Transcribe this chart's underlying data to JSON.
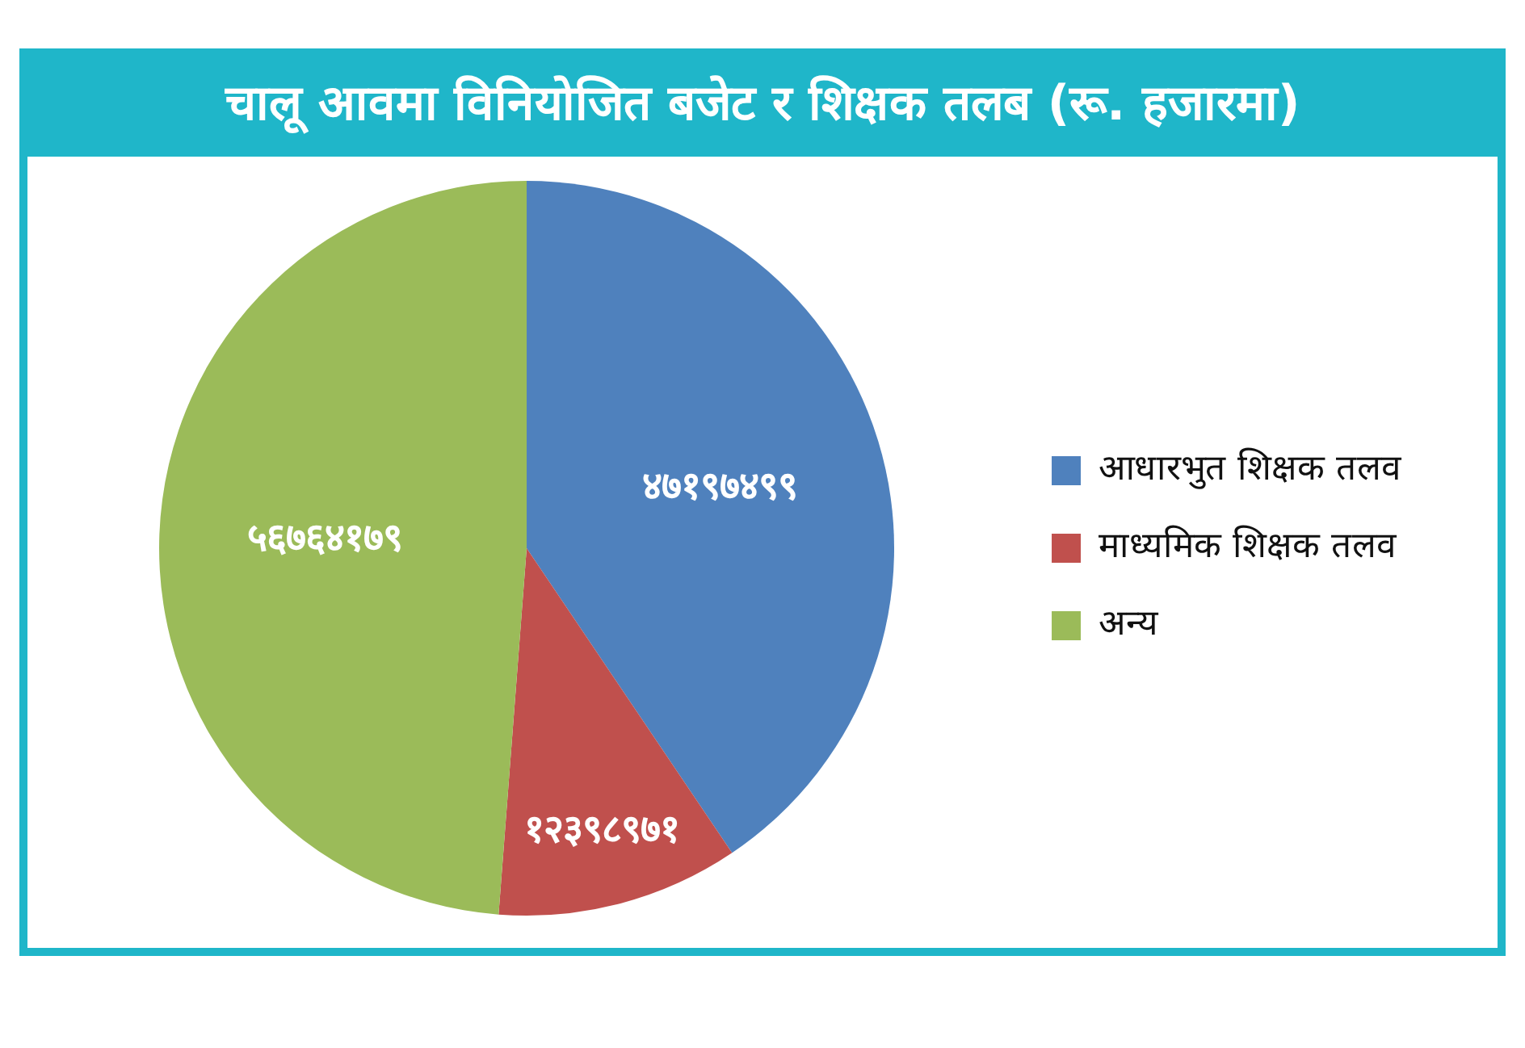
{
  "chart_data": {
    "type": "pie",
    "title": "चालू आवमा विनियोजित बजेट र शिक्षक तलब (रू. हजारमा)",
    "categories": [
      "आधारभुत शिक्षक तलव",
      "माध्यमिक शिक्षक तलव",
      "अन्य"
    ],
    "values": [
      47197499,
      12398971,
      56764179
    ],
    "colors": [
      "#4f81bd",
      "#c0504d",
      "#9bbb59"
    ],
    "value_labels": [
      "४७१९७४९९",
      "१२३९८९७१",
      "५६७६४१७९"
    ],
    "legend": "right"
  }
}
